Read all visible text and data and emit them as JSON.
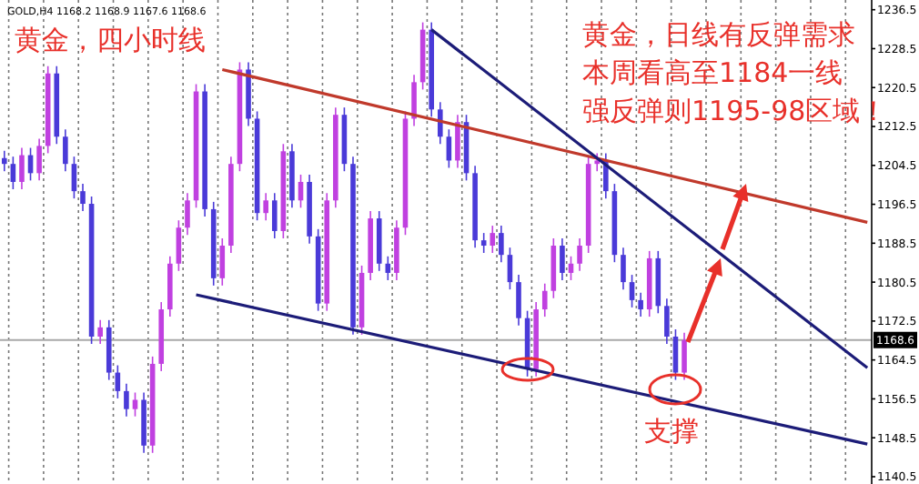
{
  "chart_data": {
    "type": "candlestick",
    "title": "黄金，四小时线",
    "annotations": [
      "GOLD,H4  1168.2  1168.9  1167.6  1168.6",
      "黄金，日线有反弹需求",
      "本周看高至1184一线",
      "强反弹则1195-98区域！",
      "支撑"
    ],
    "categories": [
      null,
      null,
      null,
      null,
      null,
      null,
      null,
      null,
      null,
      null,
      null,
      null,
      null,
      null,
      null,
      null,
      null,
      null,
      null,
      null,
      null,
      null,
      null,
      null,
      null,
      null,
      null,
      null,
      null,
      null,
      null,
      null,
      null,
      null,
      null,
      null,
      null,
      null,
      null,
      null,
      null,
      null,
      null,
      null,
      null,
      null,
      null,
      null,
      null,
      null,
      null,
      null,
      null,
      null,
      null,
      null,
      null,
      null,
      null,
      null,
      null,
      null,
      null,
      null,
      null,
      null,
      null,
      null,
      null,
      null,
      null,
      null,
      null,
      null,
      null,
      null,
      null,
      null,
      null,
      null,
      null,
      null,
      null,
      null,
      null,
      null,
      null,
      null,
      null,
      null,
      null,
      null,
      null,
      null,
      null,
      null,
      null,
      null,
      null,
      null
    ],
    "ohlc": [
      [
        1206.0,
        1207.5,
        1203.3,
        1204.8
      ],
      [
        1204.8,
        1206.3,
        1199.6,
        1201.1
      ],
      [
        1201.1,
        1208.1,
        1199.6,
        1206.6
      ],
      [
        1206.6,
        1208.1,
        1201.4,
        1202.9
      ],
      [
        1202.9,
        1210.0,
        1201.4,
        1208.5
      ],
      [
        1208.5,
        1224.9,
        1207.0,
        1223.4
      ],
      [
        1223.4,
        1224.9,
        1208.9,
        1210.4
      ],
      [
        1210.4,
        1211.9,
        1203.3,
        1204.8
      ],
      [
        1204.8,
        1206.3,
        1197.7,
        1199.2
      ],
      [
        1199.2,
        1200.7,
        1195.1,
        1196.6
      ],
      [
        1196.6,
        1198.1,
        1167.8,
        1169.3
      ],
      [
        1169.3,
        1172.7,
        1167.8,
        1171.2
      ],
      [
        1171.2,
        1172.7,
        1160.4,
        1161.9
      ],
      [
        1161.9,
        1163.4,
        1156.6,
        1158.1
      ],
      [
        1158.1,
        1159.6,
        1152.9,
        1154.4
      ],
      [
        1154.4,
        1157.8,
        1152.9,
        1156.3
      ],
      [
        1156.3,
        1157.8,
        1145.4,
        1146.9
      ],
      [
        1146.9,
        1165.2,
        1145.4,
        1163.7
      ],
      [
        1163.7,
        1176.4,
        1162.2,
        1174.9
      ],
      [
        1174.9,
        1185.8,
        1173.4,
        1184.3
      ],
      [
        1184.3,
        1193.2,
        1182.8,
        1191.7
      ],
      [
        1191.7,
        1198.8,
        1190.2,
        1197.3
      ],
      [
        1197.3,
        1221.2,
        1195.8,
        1219.7
      ],
      [
        1219.7,
        1221.2,
        1194.0,
        1195.5
      ],
      [
        1195.5,
        1197.0,
        1179.8,
        1181.3
      ],
      [
        1181.3,
        1189.5,
        1179.8,
        1188.0
      ],
      [
        1188.0,
        1206.3,
        1186.5,
        1204.8
      ],
      [
        1204.8,
        1225.7,
        1203.3,
        1224.2
      ],
      [
        1224.2,
        1225.7,
        1212.6,
        1214.1
      ],
      [
        1214.1,
        1215.6,
        1193.2,
        1194.7
      ],
      [
        1194.7,
        1198.8,
        1193.2,
        1197.3
      ],
      [
        1197.3,
        1198.8,
        1189.5,
        1191.0
      ],
      [
        1191.0,
        1208.9,
        1189.5,
        1207.4
      ],
      [
        1207.4,
        1208.9,
        1195.8,
        1197.3
      ],
      [
        1197.3,
        1202.6,
        1195.8,
        1201.1
      ],
      [
        1201.1,
        1202.6,
        1188.4,
        1189.9
      ],
      [
        1189.9,
        1191.4,
        1174.6,
        1176.1
      ],
      [
        1176.1,
        1198.8,
        1174.6,
        1197.3
      ],
      [
        1197.3,
        1216.4,
        1195.8,
        1214.9
      ],
      [
        1214.9,
        1216.4,
        1203.3,
        1204.8
      ],
      [
        1204.8,
        1206.3,
        1169.7,
        1171.2
      ],
      [
        1171.2,
        1183.9,
        1169.7,
        1182.4
      ],
      [
        1182.4,
        1195.1,
        1180.9,
        1193.6
      ],
      [
        1193.6,
        1195.1,
        1182.8,
        1184.3
      ],
      [
        1184.3,
        1185.8,
        1180.9,
        1182.4
      ],
      [
        1182.4,
        1193.2,
        1180.9,
        1191.7
      ],
      [
        1191.7,
        1215.6,
        1190.2,
        1214.1
      ],
      [
        1214.1,
        1223.1,
        1212.6,
        1221.6
      ],
      [
        1221.6,
        1233.9,
        1220.1,
        1232.4
      ],
      [
        1232.4,
        1233.9,
        1214.5,
        1216.0
      ],
      [
        1216.0,
        1217.5,
        1208.9,
        1210.4
      ],
      [
        1210.4,
        1211.9,
        1204.0,
        1205.5
      ],
      [
        1205.5,
        1214.9,
        1204.0,
        1213.4
      ],
      [
        1213.4,
        1214.9,
        1201.4,
        1202.9
      ],
      [
        1202.9,
        1204.4,
        1187.6,
        1189.1
      ],
      [
        1189.1,
        1190.6,
        1186.5,
        1188.0
      ],
      [
        1188.0,
        1192.1,
        1186.5,
        1190.6
      ],
      [
        1190.6,
        1192.1,
        1184.6,
        1186.1
      ],
      [
        1186.1,
        1187.6,
        1179.0,
        1180.5
      ],
      [
        1180.5,
        1182.0,
        1171.6,
        1173.1
      ],
      [
        1173.1,
        1174.6,
        1161.1,
        1162.6
      ],
      [
        1162.6,
        1176.4,
        1161.1,
        1174.9
      ],
      [
        1174.9,
        1180.2,
        1173.4,
        1178.7
      ],
      [
        1178.7,
        1189.5,
        1177.2,
        1188.0
      ],
      [
        1188.0,
        1189.5,
        1180.9,
        1182.4
      ],
      [
        1182.4,
        1185.8,
        1180.9,
        1184.3
      ],
      [
        1184.3,
        1189.5,
        1182.8,
        1188.0
      ],
      [
        1188.0,
        1206.3,
        1186.5,
        1204.8
      ],
      [
        1204.8,
        1207.0,
        1203.3,
        1205.5
      ],
      [
        1205.5,
        1207.0,
        1197.7,
        1199.2
      ],
      [
        1199.2,
        1200.7,
        1184.6,
        1186.1
      ],
      [
        1186.1,
        1187.6,
        1179.0,
        1180.5
      ],
      [
        1180.5,
        1182.0,
        1175.3,
        1176.8
      ],
      [
        1176.8,
        1178.3,
        1173.4,
        1174.9
      ],
      [
        1174.9,
        1186.9,
        1173.4,
        1185.4
      ],
      [
        1185.4,
        1186.9,
        1174.1,
        1175.6
      ],
      [
        1175.6,
        1177.1,
        1167.8,
        1169.3
      ],
      [
        1169.3,
        1170.8,
        1160.4,
        1161.9
      ],
      [
        1161.9,
        1170.1,
        1160.4,
        1168.6
      ],
      null,
      null,
      null,
      null,
      null,
      null,
      null,
      null,
      null,
      null,
      null,
      null,
      null,
      null,
      null,
      null,
      null,
      null,
      null,
      null,
      null
    ],
    "colors": [
      "#4a3ad8",
      "#4a3ad8",
      "#c040e0",
      "#4a3ad8",
      "#c040e0",
      "#c040e0",
      "#4a3ad8",
      "#4a3ad8",
      "#4a3ad8",
      "#4a3ad8",
      "#4a3ad8",
      "#c040e0",
      "#4a3ad8",
      "#4a3ad8",
      "#4a3ad8",
      "#c040e0",
      "#4a3ad8",
      "#c040e0",
      "#c040e0",
      "#c040e0",
      "#c040e0",
      "#c040e0",
      "#c040e0",
      "#4a3ad8",
      "#4a3ad8",
      "#c040e0",
      "#c040e0",
      "#c040e0",
      "#4a3ad8",
      "#4a3ad8",
      "#c040e0",
      "#4a3ad8",
      "#c040e0",
      "#4a3ad8",
      "#c040e0",
      "#4a3ad8",
      "#4a3ad8",
      "#c040e0",
      "#c040e0",
      "#4a3ad8",
      "#4a3ad8",
      "#c040e0",
      "#c040e0",
      "#4a3ad8",
      "#4a3ad8",
      "#c040e0",
      "#c040e0",
      "#c040e0",
      "#c040e0",
      "#4a3ad8",
      "#4a3ad8",
      "#4a3ad8",
      "#c040e0",
      "#4a3ad8",
      "#4a3ad8",
      "#4a3ad8",
      "#c040e0",
      "#4a3ad8",
      "#4a3ad8",
      "#4a3ad8",
      "#4a3ad8",
      "#c040e0",
      "#c040e0",
      "#c040e0",
      "#4a3ad8",
      "#c040e0",
      "#c040e0",
      "#c040e0",
      "#c040e0",
      "#4a3ad8",
      "#4a3ad8",
      "#4a3ad8",
      "#4a3ad8",
      "#4a3ad8",
      "#c040e0",
      "#4a3ad8",
      "#4a3ad8",
      "#4a3ad8",
      "#c040e0",
      null,
      null,
      null,
      null,
      null,
      null,
      null,
      null,
      null,
      null,
      null,
      null,
      null,
      null,
      null,
      null,
      null,
      null,
      null,
      null,
      null
    ],
    "series": [
      {
        "type": "line",
        "color": "#c0392b",
        "values": [
          null,
          null,
          null,
          null,
          null,
          null,
          null,
          null,
          null,
          null,
          null,
          null,
          null,
          null,
          null,
          null,
          null,
          null,
          null,
          null,
          null,
          null,
          null,
          null,
          null,
          1224.2,
          null,
          null,
          null,
          null,
          null,
          null,
          null,
          null,
          null,
          null,
          null,
          null,
          null,
          null,
          null,
          null,
          null,
          null,
          null,
          null,
          null,
          null,
          null,
          null,
          null,
          null,
          null,
          null,
          null,
          null,
          null,
          null,
          null,
          null,
          null,
          null,
          null,
          null,
          null,
          null,
          null,
          null,
          null,
          null,
          null,
          null,
          null,
          null,
          null,
          null,
          null,
          null,
          null,
          null,
          null,
          null,
          null,
          null,
          null,
          null,
          null,
          null,
          null,
          null,
          null,
          null,
          null,
          null,
          null,
          null,
          null,
          null,
          null,
          1192.8
        ]
      },
      {
        "type": "line",
        "color": "#1c1c78",
        "values": [
          null,
          null,
          null,
          null,
          null,
          null,
          null,
          null,
          null,
          null,
          null,
          null,
          null,
          null,
          null,
          null,
          null,
          null,
          null,
          null,
          null,
          null,
          null,
          null,
          null,
          null,
          null,
          null,
          null,
          null,
          null,
          null,
          null,
          null,
          null,
          null,
          null,
          null,
          null,
          null,
          null,
          null,
          null,
          null,
          null,
          null,
          null,
          null,
          null,
          1232.4,
          null,
          null,
          null,
          null,
          null,
          null,
          null,
          null,
          null,
          null,
          null,
          null,
          null,
          null,
          null,
          null,
          null,
          null,
          null,
          null,
          null,
          null,
          null,
          null,
          null,
          null,
          null,
          null,
          null,
          null,
          null,
          null,
          null,
          null,
          null,
          null,
          null,
          null,
          null,
          null,
          null,
          null,
          null,
          null,
          null,
          null,
          null,
          null,
          null,
          1162.9
        ]
      },
      {
        "type": "line",
        "color": "#1c1c78",
        "values": [
          null,
          null,
          null,
          null,
          null,
          null,
          null,
          null,
          null,
          null,
          null,
          null,
          null,
          null,
          null,
          null,
          null,
          null,
          null,
          null,
          null,
          null,
          1177.9,
          null,
          null,
          null,
          null,
          null,
          null,
          null,
          null,
          null,
          null,
          null,
          null,
          null,
          null,
          null,
          null,
          null,
          null,
          null,
          null,
          null,
          null,
          null,
          null,
          null,
          null,
          null,
          null,
          null,
          null,
          null,
          null,
          null,
          null,
          null,
          null,
          null,
          null,
          null,
          null,
          null,
          null,
          null,
          null,
          null,
          null,
          null,
          null,
          null,
          null,
          null,
          null,
          null,
          null,
          null,
          null,
          null,
          null,
          null,
          null,
          null,
          null,
          null,
          null,
          null,
          null,
          null,
          null,
          null,
          null,
          null,
          null,
          null,
          null,
          null,
          null,
          1147.2
        ]
      }
    ],
    "ref_lines": [
      {
        "axis": "y",
        "value": 1168.6,
        "label": "1168.6",
        "color": "#a8a8a8"
      }
    ],
    "ylim": [
      1139,
      1238.5
    ],
    "yticks": [
      1236.5,
      1228.5,
      1220.5,
      1212.5,
      1204.5,
      1196.5,
      1188.5,
      1180.5,
      1172.5,
      1164.5,
      1156.5,
      1148.5,
      1140.5
    ],
    "grid": "x",
    "tick_labels": "y"
  }
}
